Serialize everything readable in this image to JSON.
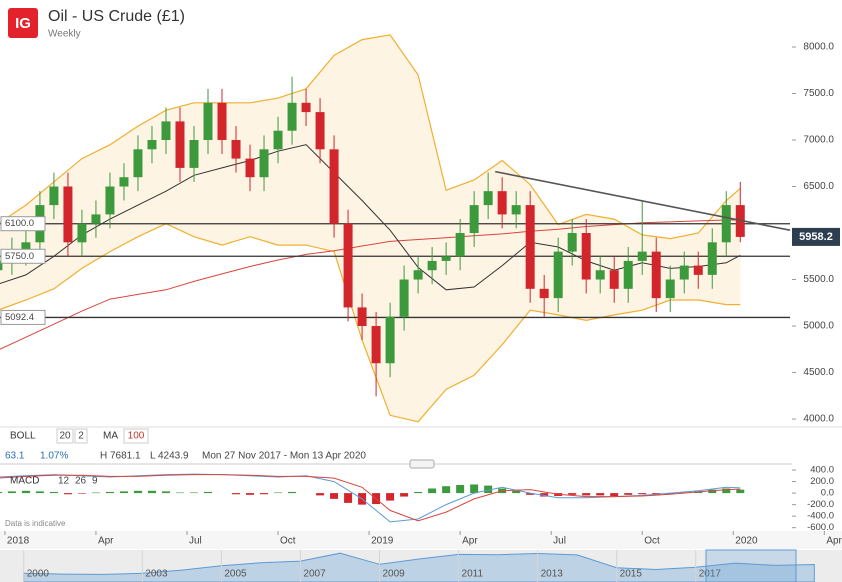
{
  "chart_data": [
    {
      "type": "candlestick",
      "logo": "IG",
      "title": "Oil - US Crude (£1)",
      "subtitle": "Weekly",
      "indicators": {
        "boll": {
          "label": "BOLL",
          "period": 20,
          "stddev": 2
        },
        "ma": {
          "label": "MA",
          "period": 100
        }
      },
      "info": [
        "63.1",
        "1.07%",
        "H 7681.1",
        "L 4243.9",
        "Mon 27 Nov 2017 - Mon 13 Apr 2020"
      ],
      "x": [
        -1,
        1,
        3,
        5,
        7,
        9,
        11,
        13,
        15,
        17,
        19,
        21,
        23,
        25,
        27,
        29,
        31,
        33,
        35,
        37,
        39,
        41,
        43,
        45,
        47,
        49,
        51,
        53,
        55,
        57,
        59,
        61,
        63,
        65,
        67,
        69,
        71,
        73,
        75,
        77,
        79,
        81,
        83,
        85,
        87,
        89,
        91,
        93,
        95,
        97,
        99,
        101,
        103,
        105
      ],
      "open": [
        5600,
        5700,
        5800,
        5900,
        6300,
        6500,
        5900,
        6100,
        6200,
        6500,
        6600,
        6900,
        7000,
        7200,
        6700,
        7000,
        7400,
        7000,
        6800,
        6600,
        6900,
        7100,
        7400,
        7300,
        6900,
        6100,
        5200,
        5000,
        4600,
        5100,
        5500,
        5600,
        5700,
        5750,
        6000,
        6300,
        6450,
        6200,
        6300,
        5400,
        5300,
        5800,
        6000,
        5500,
        5600,
        5400,
        5700,
        5800,
        5300,
        5500,
        5650,
        5550,
        5900,
        6300
      ],
      "high": [
        5850,
        5950,
        6050,
        6450,
        6650,
        6650,
        6250,
        6350,
        6650,
        6750,
        7050,
        7150,
        7350,
        7350,
        7150,
        7550,
        7550,
        7150,
        6950,
        7050,
        7250,
        7681.1,
        7550,
        7450,
        7050,
        6250,
        5350,
        5150,
        5250,
        5650,
        5750,
        5850,
        5900,
        6150,
        6450,
        6650,
        6600,
        6450,
        6450,
        5550,
        5950,
        6150,
        6150,
        5750,
        5750,
        5850,
        6350,
        5950,
        5650,
        5800,
        5800,
        6050,
        6450,
        6550
      ],
      "low": [
        5450,
        5550,
        5650,
        5750,
        6150,
        5750,
        5750,
        5950,
        6050,
        6350,
        6450,
        6750,
        6850,
        6550,
        6550,
        6850,
        6850,
        6650,
        6450,
        6450,
        6750,
        6950,
        7150,
        6750,
        5950,
        5050,
        4850,
        4243.9,
        4450,
        4950,
        5350,
        5450,
        5550,
        5600,
        5850,
        6150,
        6050,
        6050,
        5250,
        5100,
        5150,
        5650,
        5350,
        5350,
        5250,
        5250,
        5550,
        5150,
        5150,
        5350,
        5400,
        5400,
        5750,
        5900
      ],
      "close": [
        5700,
        5800,
        5900,
        6300,
        6500,
        5900,
        6100,
        6200,
        6500,
        6600,
        6900,
        7000,
        7200,
        6700,
        7000,
        7400,
        7000,
        6800,
        6600,
        6900,
        7100,
        7400,
        7300,
        6900,
        6100,
        5200,
        5000,
        4600,
        5100,
        5500,
        5600,
        5700,
        5750,
        6000,
        6300,
        6450,
        6200,
        6300,
        5400,
        5300,
        5800,
        6000,
        5500,
        5600,
        5400,
        5700,
        5800,
        5300,
        5500,
        5650,
        5550,
        5900,
        6300,
        5958.2
      ],
      "up_color": "#3c9a3c",
      "down_color": "#d2262c",
      "overlay_x": [
        -1,
        3,
        7,
        11,
        15,
        19,
        23,
        27,
        31,
        35,
        39,
        43,
        47,
        51,
        55,
        59,
        63,
        67,
        71,
        75,
        79,
        83,
        87,
        91,
        95,
        99,
        103,
        105
      ],
      "bollinger": {
        "color": "#f0b030",
        "fill": "#fdf4e4",
        "middle_color": "#333333",
        "upper": [
          6100,
          6300,
          6550,
          6800,
          6950,
          7150,
          7320,
          7400,
          7400,
          7400,
          7450,
          7550,
          7910,
          8080,
          8130,
          7700,
          6460,
          6570,
          6780,
          6520,
          6090,
          6200,
          6150,
          5980,
          5940,
          6000,
          6350,
          6480
        ],
        "middle": [
          5450,
          5550,
          5750,
          5980,
          6150,
          6300,
          6450,
          6620,
          6700,
          6780,
          6880,
          6950,
          6650,
          6350,
          6030,
          5630,
          5390,
          5420,
          5650,
          5900,
          5850,
          5700,
          5600,
          5680,
          5620,
          5640,
          5680,
          5760
        ],
        "lower": [
          5170,
          5280,
          5400,
          5620,
          5800,
          5960,
          6100,
          5960,
          5870,
          5960,
          5870,
          5870,
          5800,
          4850,
          4040,
          3970,
          4320,
          4470,
          4800,
          5170,
          5120,
          5060,
          5120,
          5170,
          5280,
          5280,
          5230,
          5230
        ]
      },
      "ma": {
        "color": "#d9453f",
        "values": [
          4740,
          4880,
          5020,
          5160,
          5290,
          5340,
          5390,
          5480,
          5560,
          5640,
          5710,
          5770,
          5810,
          5860,
          5910,
          5930,
          5950,
          5970,
          5990,
          6020,
          6040,
          6070,
          6090,
          6110,
          6120,
          6130,
          6140,
          6140
        ]
      },
      "trendline": {
        "color": "#555555",
        "x": [
          70,
          112.1
        ],
        "values": [
          6660,
          6030
        ]
      },
      "levels": [
        {
          "value": 6100,
          "label": "6100.0"
        },
        {
          "value": 5750,
          "label": "5750.0"
        },
        {
          "value": 5092.4,
          "label": "5092.4"
        }
      ],
      "last_price": {
        "value": 5958.2,
        "label": "5958.2"
      },
      "xlim": [
        -0.7,
        112.1
      ],
      "xticks": [
        {
          "value": 0,
          "label": "2018"
        },
        {
          "value": 13,
          "label": "Apr"
        },
        {
          "value": 26,
          "label": "Jul"
        },
        {
          "value": 39,
          "label": "Oct"
        },
        {
          "value": 52,
          "label": "2019"
        },
        {
          "value": 65,
          "label": "Apr"
        },
        {
          "value": 78,
          "label": "Jul"
        },
        {
          "value": 91,
          "label": "Oct"
        },
        {
          "value": 104,
          "label": "2020"
        },
        {
          "value": 117,
          "label": "Apr"
        }
      ],
      "ylim": [
        3880,
        8130
      ],
      "yticks": [
        {
          "value": 4000,
          "label": "4000.0"
        },
        {
          "value": 4500,
          "label": "4500.0"
        },
        {
          "value": 5000,
          "label": "5000.0"
        },
        {
          "value": 5500,
          "label": "5500.0"
        },
        {
          "value": 6000,
          "label": "6000.0"
        },
        {
          "value": 6500,
          "label": "6500.0"
        },
        {
          "value": 7000,
          "label": "7000.0"
        },
        {
          "value": 7500,
          "label": "7500.0"
        },
        {
          "value": 8000,
          "label": "8000.0"
        }
      ]
    },
    {
      "type": "macd",
      "title": "MACD",
      "params": [
        12,
        26,
        9
      ],
      "note": "Data is indicative",
      "histogram": [
        20,
        30,
        40,
        30,
        20,
        -20,
        -10,
        10,
        20,
        30,
        40,
        40,
        30,
        10,
        10,
        20,
        0,
        -20,
        -30,
        -20,
        10,
        20,
        0,
        -40,
        -100,
        -170,
        -200,
        -190,
        -130,
        -60,
        20,
        80,
        120,
        140,
        150,
        130,
        80,
        40,
        -30,
        -60,
        -50,
        -30,
        -40,
        -40,
        -50,
        -30,
        -20,
        -40,
        -20,
        10,
        30,
        60,
        80,
        60
      ],
      "pos_color": "#3c9a3c",
      "neg_color": "#d2262c",
      "macd": {
        "color": "#5b9bd5",
        "values": [
          280,
          300,
          320,
          300,
          280,
          300,
          320,
          330,
          320,
          300,
          280,
          300,
          200,
          -100,
          -500,
          -450,
          -200,
          0,
          100,
          0,
          -80,
          -80,
          -60,
          -40,
          0,
          40,
          100,
          90
        ]
      },
      "signal": {
        "color": "#d9453f",
        "values": [
          260,
          290,
          310,
          310,
          290,
          290,
          310,
          320,
          320,
          310,
          290,
          290,
          260,
          100,
          -300,
          -480,
          -330,
          -100,
          40,
          60,
          -20,
          -60,
          -60,
          -50,
          -20,
          20,
          60,
          70
        ]
      },
      "ylim": [
        -640,
        470
      ],
      "yticks": [
        {
          "value": 400,
          "label": "400.0"
        },
        {
          "value": 200,
          "label": "200.0"
        },
        {
          "value": 0,
          "label": "0.0"
        },
        {
          "value": -200,
          "label": "-200.0"
        },
        {
          "value": -400,
          "label": "-400.0"
        },
        {
          "value": -600,
          "label": "-600.0"
        }
      ]
    },
    {
      "type": "area",
      "color": "#8fb8dd",
      "x": [
        2000,
        2001,
        2002,
        2003,
        2004,
        2005,
        2006,
        2007,
        2008,
        2009,
        2010,
        2011,
        2012,
        2013,
        2014,
        2015,
        2016,
        2017,
        2018,
        2019,
        2020
      ],
      "values": [
        3000,
        2700,
        2600,
        3000,
        4100,
        5600,
        6600,
        7200,
        9900,
        6100,
        7900,
        9500,
        9400,
        9800,
        9300,
        4900,
        4300,
        5100,
        6500,
        5700,
        6000
      ],
      "xlim": [
        1999.4,
        2020.7
      ],
      "ylim": [
        0,
        11000
      ],
      "xticks": [
        2000,
        2003,
        2005,
        2007,
        2009,
        2011,
        2013,
        2015,
        2017
      ]
    }
  ]
}
